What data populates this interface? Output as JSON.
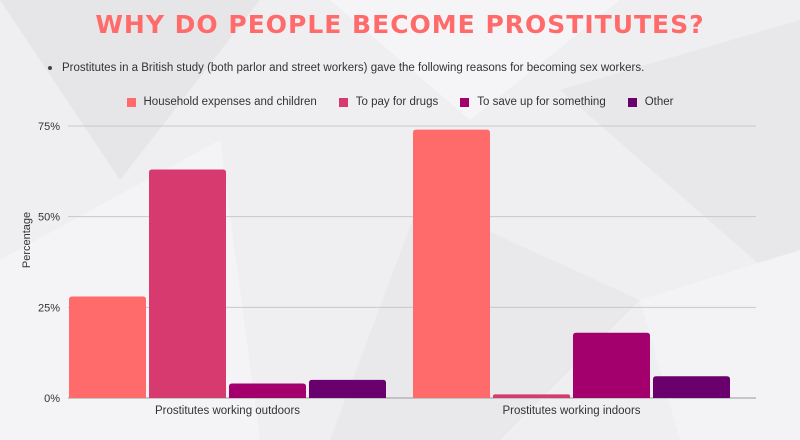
{
  "title": "WHY DO PEOPLE BECOME PROSTITUTES?",
  "subtitle": "Prostitutes in a British study (both parlor and street workers) gave the following reasons for becoming sex workers.",
  "colors": {
    "title": "#ff6b6b",
    "series": [
      "#ff6b6b",
      "#d63a6e",
      "#a3006d",
      "#6a006e"
    ]
  },
  "chart_data": {
    "type": "bar",
    "title": "WHY DO PEOPLE BECOME PROSTITUTES?",
    "ylabel": "Percentage",
    "xlabel": "",
    "ylim": [
      0,
      75
    ],
    "yticks": [
      0,
      25,
      50,
      75
    ],
    "ytick_labels": [
      "0%",
      "25%",
      "50%",
      "75%"
    ],
    "grid": true,
    "legend_position": "top",
    "categories": [
      "Prostitutes working outdoors",
      "Prostitutes working indoors"
    ],
    "series": [
      {
        "name": "Household expenses and children",
        "values": [
          28,
          74
        ]
      },
      {
        "name": "To pay for drugs",
        "values": [
          63,
          1
        ]
      },
      {
        "name": "To save up for something",
        "values": [
          4,
          18
        ]
      },
      {
        "name": "Other",
        "values": [
          5,
          6
        ]
      }
    ]
  }
}
